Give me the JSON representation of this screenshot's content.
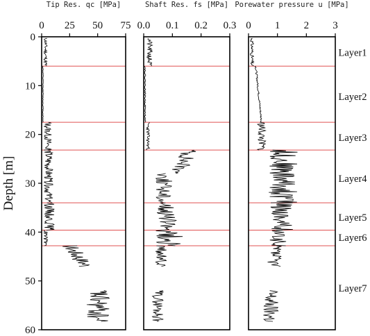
{
  "chart_data": {
    "type": "line",
    "ylabel": "Depth [m]",
    "ylim": [
      0,
      60
    ],
    "y_inverted": true,
    "y_ticks": [
      "0",
      "10",
      "20",
      "30",
      "40",
      "50",
      "60"
    ],
    "boundary_color": "#e05050",
    "trace_color": "#000000",
    "layer_boundaries": [
      6.0,
      17.5,
      23.2,
      34.0,
      39.6,
      42.8
    ],
    "layers": [
      {
        "name": "Layer1",
        "depth": 3.2
      },
      {
        "name": "Layer2",
        "depth": 12.2
      },
      {
        "name": "Layer3",
        "depth": 20.6
      },
      {
        "name": "Layer4",
        "depth": 29.0
      },
      {
        "name": "Layer5",
        "depth": 37.0
      },
      {
        "name": "Layer6",
        "depth": 41.1
      },
      {
        "name": "Layer7",
        "depth": 51.5
      }
    ],
    "panels": [
      {
        "title": "Tip Res. qc [MPa]",
        "xlim": [
          0,
          75
        ],
        "x_ticks": [
          "0",
          "25",
          "50",
          "75"
        ],
        "segments": [
          {
            "from": 0.3,
            "to": 6.0,
            "base": 3.5,
            "amp": 1.6,
            "seed": 11
          },
          {
            "from": 6.0,
            "to": 17.5,
            "base": 1.2,
            "amp": 0.3,
            "seed": 12
          },
          {
            "from": 17.5,
            "to": 23.2,
            "base": 5.5,
            "amp": 3.5,
            "seed": 13
          },
          {
            "from": 23.2,
            "to": 34.0,
            "base": 6.0,
            "amp": 4.0,
            "seed": 14
          },
          {
            "from": 34.0,
            "to": 39.6,
            "base": 7.0,
            "amp": 4.5,
            "seed": 15
          },
          {
            "from": 39.6,
            "to": 42.8,
            "base": 3.5,
            "amp": 2.0,
            "seed": 16
          },
          {
            "from": 42.8,
            "to": 47.0,
            "base": 25.0,
            "base_end": 40.0,
            "amp": 8.0,
            "seed": 17
          },
          {
            "from": 52.0,
            "to": 58.3,
            "base": 50.0,
            "amp": 11.0,
            "seed": 18
          }
        ]
      },
      {
        "title": "Shaft Res. fs [MPa]",
        "xlim": [
          0,
          0.3
        ],
        "x_ticks": [
          "0.0",
          "0.1",
          "0.2",
          "0.3"
        ],
        "segments": [
          {
            "from": 0.3,
            "to": 6.0,
            "base": 0.02,
            "amp": 0.01,
            "seed": 21
          },
          {
            "from": 6.0,
            "to": 17.5,
            "base": 0.005,
            "amp": 0.002,
            "seed": 22
          },
          {
            "from": 17.5,
            "to": 23.2,
            "base": 0.015,
            "amp": 0.006,
            "seed": 23
          },
          {
            "from": 23.2,
            "to": 28.0,
            "base": 0.16,
            "base_end": 0.12,
            "amp": 0.03,
            "seed": 24
          },
          {
            "from": 28.0,
            "to": 34.0,
            "base": 0.07,
            "amp": 0.03,
            "seed": 25
          },
          {
            "from": 34.0,
            "to": 39.6,
            "base": 0.08,
            "amp": 0.035,
            "seed": 26
          },
          {
            "from": 39.6,
            "to": 42.8,
            "base": 0.09,
            "amp": 0.05,
            "seed": 27
          },
          {
            "from": 42.8,
            "to": 47.0,
            "base": 0.06,
            "amp": 0.02,
            "seed": 28
          },
          {
            "from": 52.0,
            "to": 58.3,
            "base": 0.05,
            "amp": 0.02,
            "seed": 29
          }
        ]
      },
      {
        "title": "Porewater pressure u [MPa]",
        "xlim": [
          0,
          3
        ],
        "x_ticks": [
          "0",
          "1",
          "2",
          "3"
        ],
        "segments": [
          {
            "from": 0.3,
            "to": 6.0,
            "base": 0.12,
            "amp": 0.06,
            "seed": 31
          },
          {
            "from": 6.0,
            "to": 17.5,
            "base": 0.25,
            "base_end": 0.45,
            "amp": 0.03,
            "seed": 32
          },
          {
            "from": 17.5,
            "to": 23.2,
            "base": 0.45,
            "amp": 0.15,
            "seed": 33
          },
          {
            "from": 23.2,
            "to": 34.0,
            "base": 1.2,
            "amp": 0.5,
            "seed": 34
          },
          {
            "from": 34.0,
            "to": 39.6,
            "base": 1.15,
            "amp": 0.4,
            "seed": 35
          },
          {
            "from": 39.6,
            "to": 42.8,
            "base": 1.0,
            "amp": 0.3,
            "seed": 36
          },
          {
            "from": 42.8,
            "to": 47.0,
            "base": 0.9,
            "amp": 0.25,
            "seed": 37
          },
          {
            "from": 52.0,
            "to": 58.3,
            "base": 0.75,
            "amp": 0.3,
            "seed": 38
          }
        ]
      }
    ]
  }
}
